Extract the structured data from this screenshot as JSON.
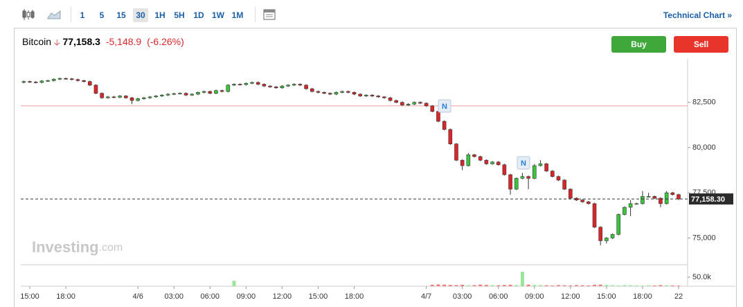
{
  "toolbar": {
    "intervals": [
      "1",
      "5",
      "15",
      "30",
      "1H",
      "5H",
      "1D",
      "1W",
      "1M"
    ],
    "technical_chart": "Technical Chart »"
  },
  "header": {
    "instrument": "Bitcoin",
    "price": "77,158.3",
    "change": "-5,148.9",
    "change_percent": "(-6.26%)",
    "buy": "Buy",
    "sell": "Sell"
  },
  "watermark": {
    "brand": "Investing",
    "suffix": ".com"
  },
  "annotations": [
    "N",
    "N"
  ],
  "chart_data": {
    "type": "candlestick",
    "up_color": "#3cc43c",
    "down_color": "#d9262b",
    "previous_close_color": "#e8a0a0",
    "categories": [
      null,
      "15:00",
      null,
      null,
      null,
      null,
      null,
      "18:00",
      null,
      null,
      null,
      null,
      null,
      null,
      null,
      null,
      null,
      null,
      null,
      "4/6",
      null,
      null,
      null,
      null,
      null,
      "03:00",
      null,
      null,
      null,
      null,
      null,
      "06:00",
      null,
      null,
      null,
      null,
      null,
      "09:00",
      null,
      null,
      null,
      null,
      null,
      "12:00",
      null,
      null,
      null,
      null,
      null,
      "15:00",
      null,
      null,
      null,
      null,
      null,
      "18:00",
      null,
      null,
      null,
      null,
      null,
      null,
      null,
      null,
      null,
      null,
      null,
      "4/7",
      null,
      null,
      null,
      null,
      null,
      "03:00",
      null,
      null,
      null,
      null,
      null,
      "06:00",
      null,
      null,
      null,
      null,
      null,
      "09:00",
      null,
      null,
      null,
      null,
      null,
      "12:00",
      null,
      null,
      null,
      null,
      null,
      "15:00",
      null,
      null,
      null,
      null,
      null,
      "18:00",
      null,
      null,
      null,
      null,
      null,
      "22"
    ],
    "open": [
      83600,
      83650,
      83620,
      83600,
      83680,
      83700,
      83780,
      83820,
      83800,
      83760,
      83700,
      83650,
      83450,
      83000,
      82750,
      82800,
      82780,
      82850,
      82750,
      82600,
      82700,
      82750,
      82800,
      82850,
      82900,
      82950,
      82980,
      83000,
      82900,
      82950,
      83050,
      83100,
      83000,
      83150,
      83100,
      83450,
      83500,
      83480,
      83550,
      83600,
      83500,
      83400,
      83350,
      83300,
      83400,
      83450,
      83500,
      83450,
      83250,
      83100,
      83050,
      83000,
      82950,
      83050,
      83100,
      83050,
      82950,
      82850,
      82900,
      82850,
      82800,
      82750,
      82600,
      82500,
      82350,
      82400,
      82500,
      82450,
      82300,
      82000,
      81450,
      81000,
      80200,
      79300,
      79000,
      79600,
      79500,
      79300,
      79100,
      79200,
      79050,
      78500,
      77700,
      78300,
      78400,
      78300,
      79000,
      79100,
      78700,
      78400,
      78200,
      77700,
      77200,
      77100,
      77000,
      76900,
      75600,
      74850,
      75000,
      75200,
      76300,
      76700,
      76900,
      76900,
      77300,
      77300,
      77200,
      76900,
      77500,
      77400
    ],
    "high": [
      83700,
      83700,
      83670,
      83730,
      83750,
      83830,
      83870,
      83870,
      83850,
      83810,
      83750,
      83700,
      83500,
      83050,
      82850,
      82850,
      82900,
      82900,
      82800,
      82750,
      82800,
      82850,
      82900,
      82950,
      83000,
      83030,
      83050,
      83050,
      83000,
      83100,
      83150,
      83150,
      83200,
      83200,
      83500,
      83550,
      83550,
      83600,
      83650,
      83650,
      83550,
      83450,
      83400,
      83450,
      83500,
      83550,
      83550,
      83500,
      83300,
      83150,
      83100,
      83050,
      83100,
      83150,
      83150,
      83100,
      83000,
      82950,
      82950,
      82900,
      82850,
      82800,
      82650,
      82550,
      82450,
      82550,
      82550,
      82500,
      82350,
      82050,
      81500,
      81050,
      80250,
      79350,
      79700,
      79650,
      79550,
      79350,
      79250,
      79250,
      79100,
      78550,
      78350,
      78600,
      78450,
      79100,
      79300,
      79150,
      78750,
      78450,
      78250,
      77750,
      77250,
      77150,
      77050,
      76950,
      75650,
      75050,
      75250,
      76350,
      76750,
      77100,
      76950,
      77600,
      77500,
      77350,
      77250,
      77600,
      77550,
      77450
    ],
    "low": [
      83550,
      83570,
      83550,
      83550,
      83630,
      83650,
      83730,
      83750,
      83710,
      83650,
      83600,
      83400,
      82950,
      82700,
      82700,
      82730,
      82730,
      82700,
      82400,
      82550,
      82650,
      82700,
      82750,
      82800,
      82850,
      82900,
      82930,
      82850,
      82850,
      82900,
      83000,
      82950,
      82950,
      83050,
      83050,
      83400,
      83430,
      83430,
      83500,
      83450,
      83350,
      83300,
      83250,
      83250,
      83350,
      83400,
      83400,
      83200,
      83050,
      83000,
      82950,
      82900,
      82900,
      83000,
      83000,
      82900,
      82800,
      82800,
      82800,
      82750,
      82700,
      82550,
      82450,
      82300,
      82300,
      82350,
      82400,
      82250,
      81950,
      81400,
      80950,
      80150,
      79250,
      78750,
      78950,
      79450,
      79250,
      79050,
      79050,
      79000,
      78450,
      77400,
      77650,
      78250,
      77700,
      78250,
      78950,
      78650,
      78350,
      78150,
      77650,
      77150,
      77050,
      76950,
      76850,
      75550,
      74600,
      74700,
      74950,
      75150,
      76250,
      76200,
      76850,
      76850,
      77250,
      77150,
      76700,
      76850,
      77350,
      77100
    ],
    "close": [
      83650,
      83620,
      83600,
      83680,
      83700,
      83780,
      83820,
      83800,
      83760,
      83700,
      83650,
      83450,
      83000,
      82750,
      82800,
      82780,
      82850,
      82750,
      82600,
      82700,
      82750,
      82800,
      82850,
      82900,
      82950,
      82980,
      83000,
      82900,
      82950,
      83050,
      83100,
      83000,
      83150,
      83100,
      83450,
      83500,
      83480,
      83550,
      83600,
      83500,
      83400,
      83350,
      83300,
      83400,
      83450,
      83500,
      83450,
      83250,
      83100,
      83050,
      83000,
      82950,
      83050,
      83100,
      83050,
      82950,
      82850,
      82900,
      82850,
      82800,
      82750,
      82600,
      82500,
      82350,
      82400,
      82500,
      82450,
      82300,
      82000,
      81450,
      81000,
      80200,
      79300,
      79000,
      79600,
      79500,
      79300,
      79100,
      79200,
      79050,
      78500,
      77700,
      78300,
      78400,
      78300,
      79000,
      79100,
      78700,
      78400,
      78200,
      77700,
      77200,
      77100,
      77000,
      76900,
      75600,
      74850,
      75000,
      75200,
      76300,
      76700,
      76900,
      76900,
      77300,
      77300,
      77200,
      76900,
      77500,
      77400,
      77158.3
    ],
    "volume": [
      0,
      0,
      0,
      0,
      0,
      0,
      0,
      0,
      0,
      0,
      0,
      0,
      0,
      0,
      0,
      0,
      0,
      0,
      0,
      0,
      0,
      0,
      0,
      0,
      0,
      0,
      0,
      0,
      0,
      0,
      0,
      0,
      0,
      0,
      0,
      30000,
      0,
      0,
      0,
      0,
      0,
      0,
      0,
      0,
      0,
      0,
      0,
      0,
      0,
      0,
      0,
      0,
      0,
      0,
      0,
      0,
      0,
      0,
      0,
      0,
      0,
      0,
      0,
      0,
      0,
      0,
      0,
      0,
      8000,
      10000,
      9000,
      7000,
      6000,
      8000,
      5000,
      6000,
      9000,
      7000,
      6000,
      5000,
      7000,
      8000,
      6000,
      80000,
      9000,
      7000,
      6000,
      5000,
      4000,
      6000,
      5000,
      4000,
      6000,
      5000,
      4000,
      8000,
      9000,
      7000,
      5000,
      4000,
      6000,
      5000,
      4000,
      3000,
      5000,
      4000,
      6000,
      5000,
      4000,
      3000
    ],
    "ylim": [
      73600,
      84900
    ],
    "yticks": [
      {
        "value": 75000,
        "label": "75,000"
      },
      {
        "value": 77500,
        "label": "77,500"
      },
      {
        "value": 80000,
        "label": "80,000"
      },
      {
        "value": 82500,
        "label": "82,500"
      }
    ],
    "volume_ylim": [
      0,
      115000
    ],
    "volume_yticks": [
      {
        "value": 50000,
        "label": "50.0k"
      }
    ],
    "previous_close": 82307.2,
    "last_price": {
      "value": 77158.3,
      "label": "77,158.30"
    },
    "grid": false
  }
}
